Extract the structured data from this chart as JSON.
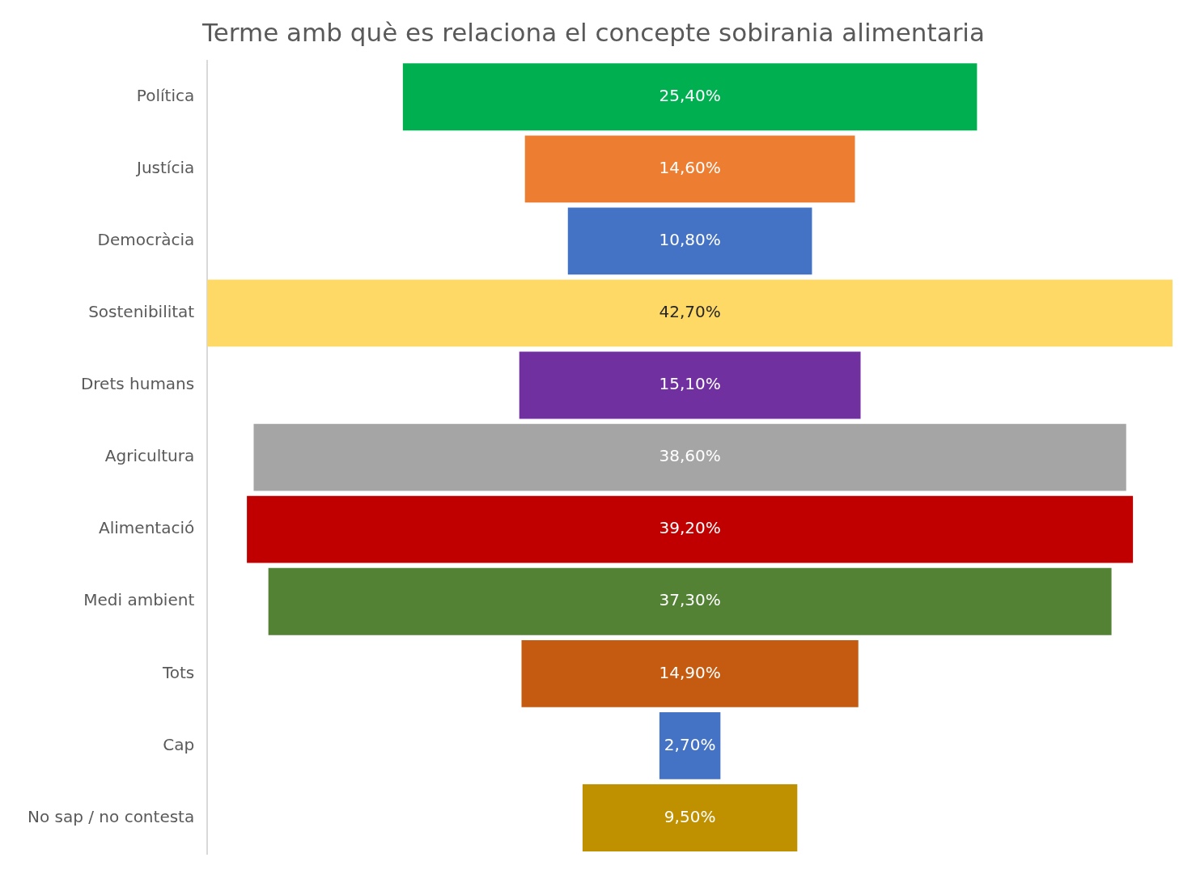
{
  "chart_data": {
    "type": "other",
    "title": "Terme amb què es relaciona el concepte sobirania alimentaria",
    "categories": [
      "Política",
      "Justícia",
      "Democràcia",
      "Sostenibilitat",
      "Drets humans",
      "Agricultura",
      "Alimentació",
      "Medi ambient",
      "Tots",
      "Cap",
      "No sap / no contesta"
    ],
    "values": [
      25.4,
      14.6,
      10.8,
      42.7,
      15.1,
      38.6,
      39.2,
      37.3,
      14.9,
      2.7,
      9.5
    ],
    "value_labels": [
      "25,40%",
      "14,60%",
      "10,80%",
      "42,70%",
      "15,10%",
      "38,60%",
      "39,20%",
      "37,30%",
      "14,90%",
      "2,70%",
      "9,50%"
    ],
    "colors": [
      "#00b050",
      "#ed7d31",
      "#4472c4",
      "#ffd966",
      "#7030a0",
      "#a5a5a5",
      "#c00000",
      "#548235",
      "#c55a11",
      "#4472c4",
      "#bf9000"
    ],
    "legend": false
  }
}
